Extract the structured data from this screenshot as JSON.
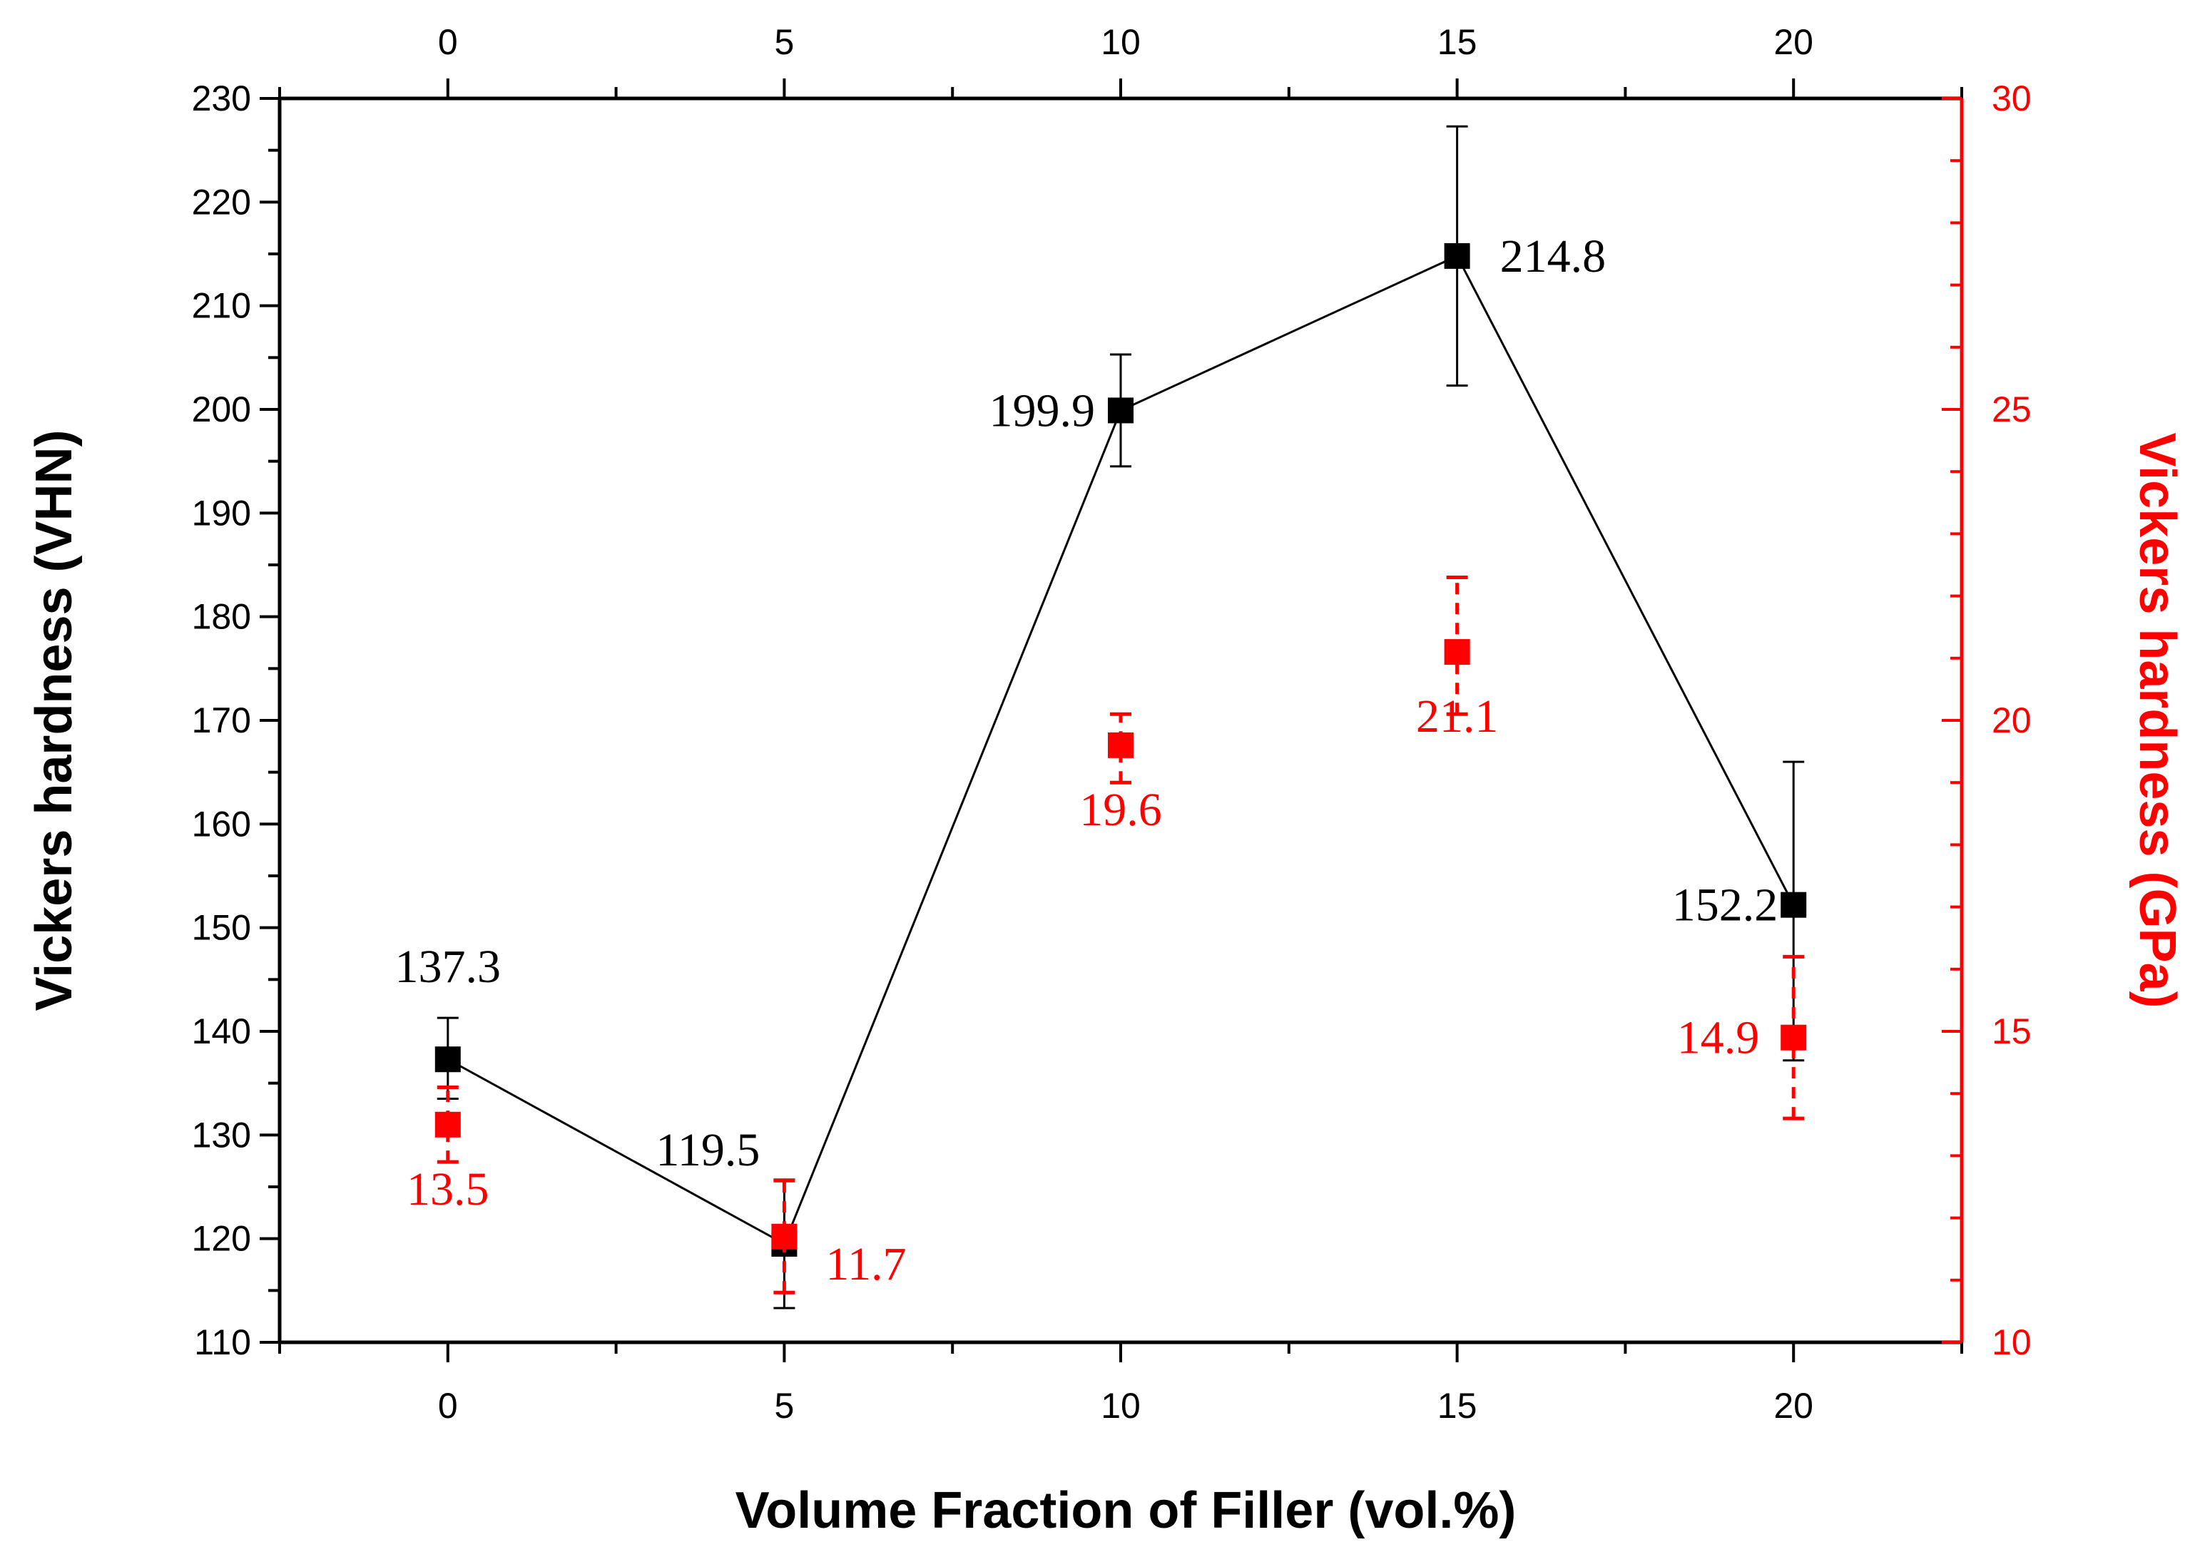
{
  "chart_data": {
    "type": "scatter",
    "xlabel": "Volume Fraction of Filler (vol.%)",
    "ylabel": "Vickers hardness (VHN)",
    "y2label": "Vickers hardness (GPa)",
    "xlim": [
      -2.5,
      22.5
    ],
    "ylim": [
      110,
      230
    ],
    "y2lim": [
      10,
      30
    ],
    "x_ticks": [
      "0",
      "5",
      "10",
      "15",
      "20"
    ],
    "x_top_ticks": [
      "0",
      "5",
      "10",
      "15",
      "20"
    ],
    "y_ticks": [
      "110",
      "120",
      "130",
      "140",
      "150",
      "160",
      "170",
      "180",
      "190",
      "200",
      "210",
      "220",
      "230"
    ],
    "y2_ticks": [
      "10",
      "15",
      "20",
      "25",
      "30"
    ],
    "grid": false,
    "series": [
      {
        "axis": "left",
        "color": "#000000",
        "marker": "square",
        "line": "solid",
        "x": [
          0,
          5,
          10,
          15,
          20
        ],
        "values": [
          137.3,
          119.5,
          199.9,
          214.8,
          152.2
        ],
        "err_low": [
          133.5,
          113.3,
          194.5,
          202.3,
          137.2
        ],
        "err_high": [
          141.3,
          125.7,
          205.3,
          227.3,
          166.0
        ],
        "labels": [
          "137.3",
          "119.5",
          "199.9",
          "214.8",
          "152.2"
        ]
      },
      {
        "axis": "right",
        "color": "#ff0000",
        "marker": "square",
        "line": "none",
        "x": [
          0,
          5,
          10,
          15,
          20
        ],
        "values": [
          13.5,
          11.7,
          19.6,
          21.1,
          14.9
        ],
        "err_low": [
          12.9,
          10.8,
          19.0,
          20.1,
          13.6
        ],
        "err_high": [
          14.1,
          12.6,
          20.1,
          22.3,
          16.2
        ],
        "labels": [
          "13.5",
          "11.7",
          "19.6",
          "21.1",
          "14.9"
        ]
      }
    ]
  }
}
